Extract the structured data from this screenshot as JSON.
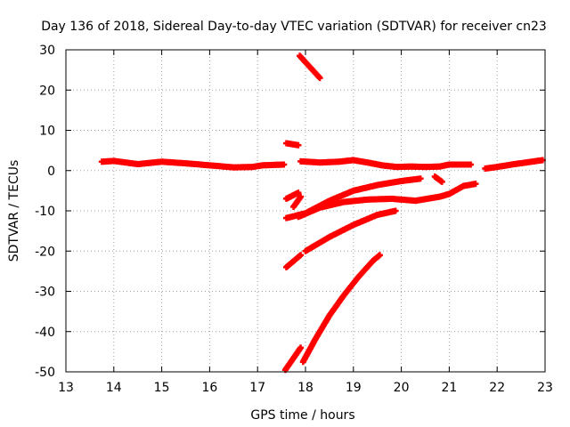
{
  "chart_data": {
    "type": "scatter",
    "title": "Day 136 of 2018, Sidereal Day-to-day VTEC variation (SDTVAR) for receiver cn23",
    "xlabel": "GPS time / hours",
    "ylabel": "SDTVAR / TECUs",
    "xlim": [
      13,
      23
    ],
    "ylim": [
      -50,
      30
    ],
    "xticks": [
      13,
      14,
      15,
      16,
      17,
      18,
      19,
      20,
      21,
      22,
      23
    ],
    "yticks": [
      30,
      20,
      10,
      0,
      -10,
      -20,
      -30,
      -40,
      -50
    ],
    "grid": true,
    "legend": "none",
    "color": "#ff0000",
    "series": [
      {
        "x": [
          13.75,
          14.0,
          14.5,
          15.0,
          15.5,
          16.0,
          16.5,
          16.9,
          17.1,
          17.55
        ],
        "y": [
          2.2,
          2.4,
          1.6,
          2.2,
          1.8,
          1.3,
          0.8,
          0.9,
          1.3,
          1.5
        ]
      },
      {
        "x": [
          17.6,
          17.85
        ],
        "y": [
          6.8,
          6.3
        ]
      },
      {
        "x": [
          17.9,
          18.3,
          18.7,
          19.0,
          19.3,
          19.6,
          19.9,
          20.2,
          20.5,
          20.8,
          21.0,
          21.45
        ],
        "y": [
          2.3,
          2.0,
          2.2,
          2.6,
          2.0,
          1.3,
          0.9,
          1.0,
          0.9,
          1.0,
          1.5,
          1.5
        ]
      },
      {
        "x": [
          21.75,
          22.0,
          22.3,
          22.6,
          22.95
        ],
        "y": [
          0.5,
          0.9,
          1.5,
          2.0,
          2.6
        ]
      },
      {
        "x": [
          17.6,
          17.85
        ],
        "y": [
          -7.0,
          -5.5
        ]
      },
      {
        "x": [
          17.75,
          17.9
        ],
        "y": [
          -9.0,
          -6.5
        ]
      },
      {
        "x": [
          17.6,
          18.0,
          18.5,
          19.0,
          19.5,
          20.0,
          20.4
        ],
        "y": [
          -11.8,
          -10.6,
          -7.5,
          -5.0,
          -3.6,
          -2.6,
          -2.0
        ]
      },
      {
        "x": [
          20.7,
          20.85
        ],
        "y": [
          -1.5,
          -2.8
        ]
      },
      {
        "x": [
          17.85,
          18.3,
          18.8,
          19.3,
          19.8,
          20.3,
          20.8,
          21.0,
          21.3,
          21.55
        ],
        "y": [
          -11.5,
          -9.2,
          -7.8,
          -7.2,
          -7.0,
          -7.5,
          -6.5,
          -5.8,
          -3.8,
          -3.3
        ]
      },
      {
        "x": [
          17.6,
          17.9
        ],
        "y": [
          -24.0,
          -21.0
        ]
      },
      {
        "x": [
          18.0,
          18.5,
          19.0,
          19.5,
          19.88
        ],
        "y": [
          -20.0,
          -16.5,
          -13.5,
          -11.0,
          -10.0
        ]
      },
      {
        "x": [
          17.58,
          17.9
        ],
        "y": [
          -49.5,
          -44.0
        ]
      },
      {
        "x": [
          17.95,
          18.2,
          18.5,
          18.8,
          19.1,
          19.4,
          19.55
        ],
        "y": [
          -47.5,
          -42.0,
          -36.0,
          -31.0,
          -26.5,
          -22.5,
          -21.0
        ]
      },
      {
        "x": [
          17.88,
          18.3
        ],
        "y": [
          28.5,
          23.0
        ]
      }
    ]
  }
}
